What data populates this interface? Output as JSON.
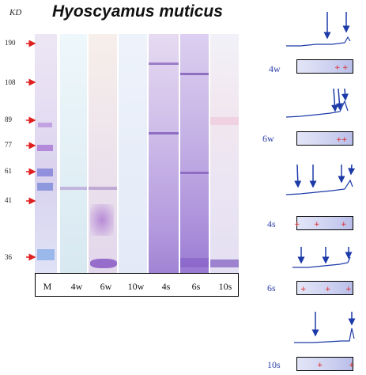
{
  "title": "Hyoscyamus muticus",
  "unit_label": "KD",
  "markers": [
    "190",
    "108",
    "89",
    "77",
    "61",
    "41",
    "36"
  ],
  "lanes": [
    "M",
    "4w",
    "6w",
    "10w",
    "4s",
    "6s",
    "10s"
  ],
  "densitometry": [
    "4w",
    "6w",
    "4s",
    "6s",
    "10s"
  ],
  "colors": {
    "marker_arrow": "#e02020",
    "trace": "#1c3aa8",
    "stain": "#7a4fb8",
    "side_label": "#2b3fa8"
  }
}
